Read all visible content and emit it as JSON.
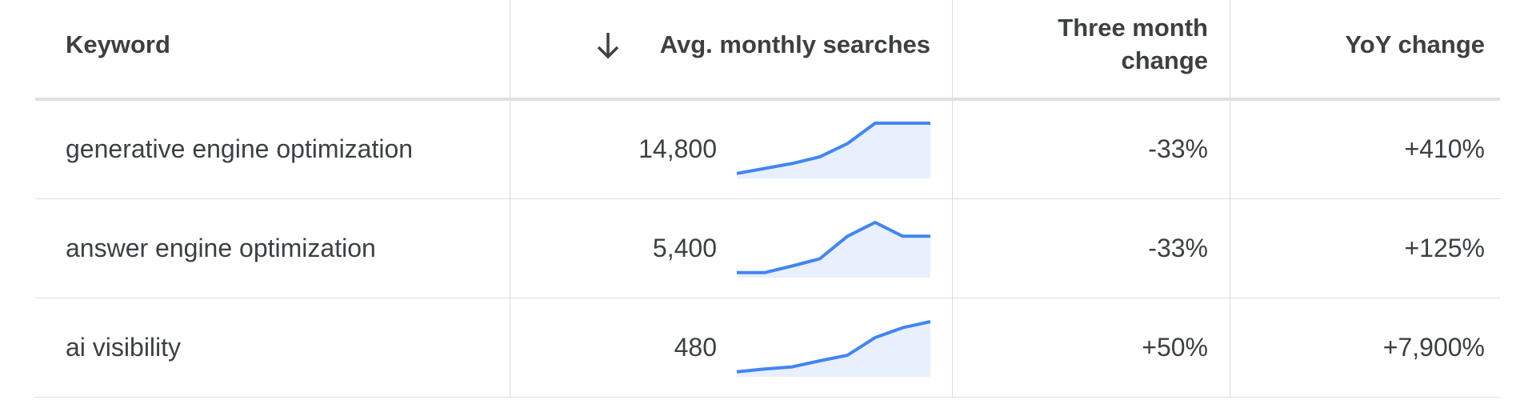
{
  "table": {
    "headers": [
      "Keyword",
      "Avg. monthly searches",
      "Three month change",
      "YoY change"
    ],
    "rows": [
      {
        "keyword": "generative engine optimization",
        "searches": "14,800",
        "trend": [
          9,
          18,
          27,
          39,
          63,
          100,
          100,
          100
        ],
        "three_month": "-33%",
        "yoy": "+410%"
      },
      {
        "keyword": "answer engine optimization",
        "searches": "5,400",
        "trend": [
          9,
          9,
          21,
          34,
          75,
          100,
          75,
          75
        ],
        "three_month": "-33%",
        "yoy": "+125%"
      },
      {
        "keyword": "ai visibility",
        "searches": "480",
        "trend": [
          9,
          14,
          18,
          29,
          39,
          71,
          89,
          100
        ],
        "three_month": "+50%",
        "yoy": "+7,900%"
      }
    ]
  }
}
